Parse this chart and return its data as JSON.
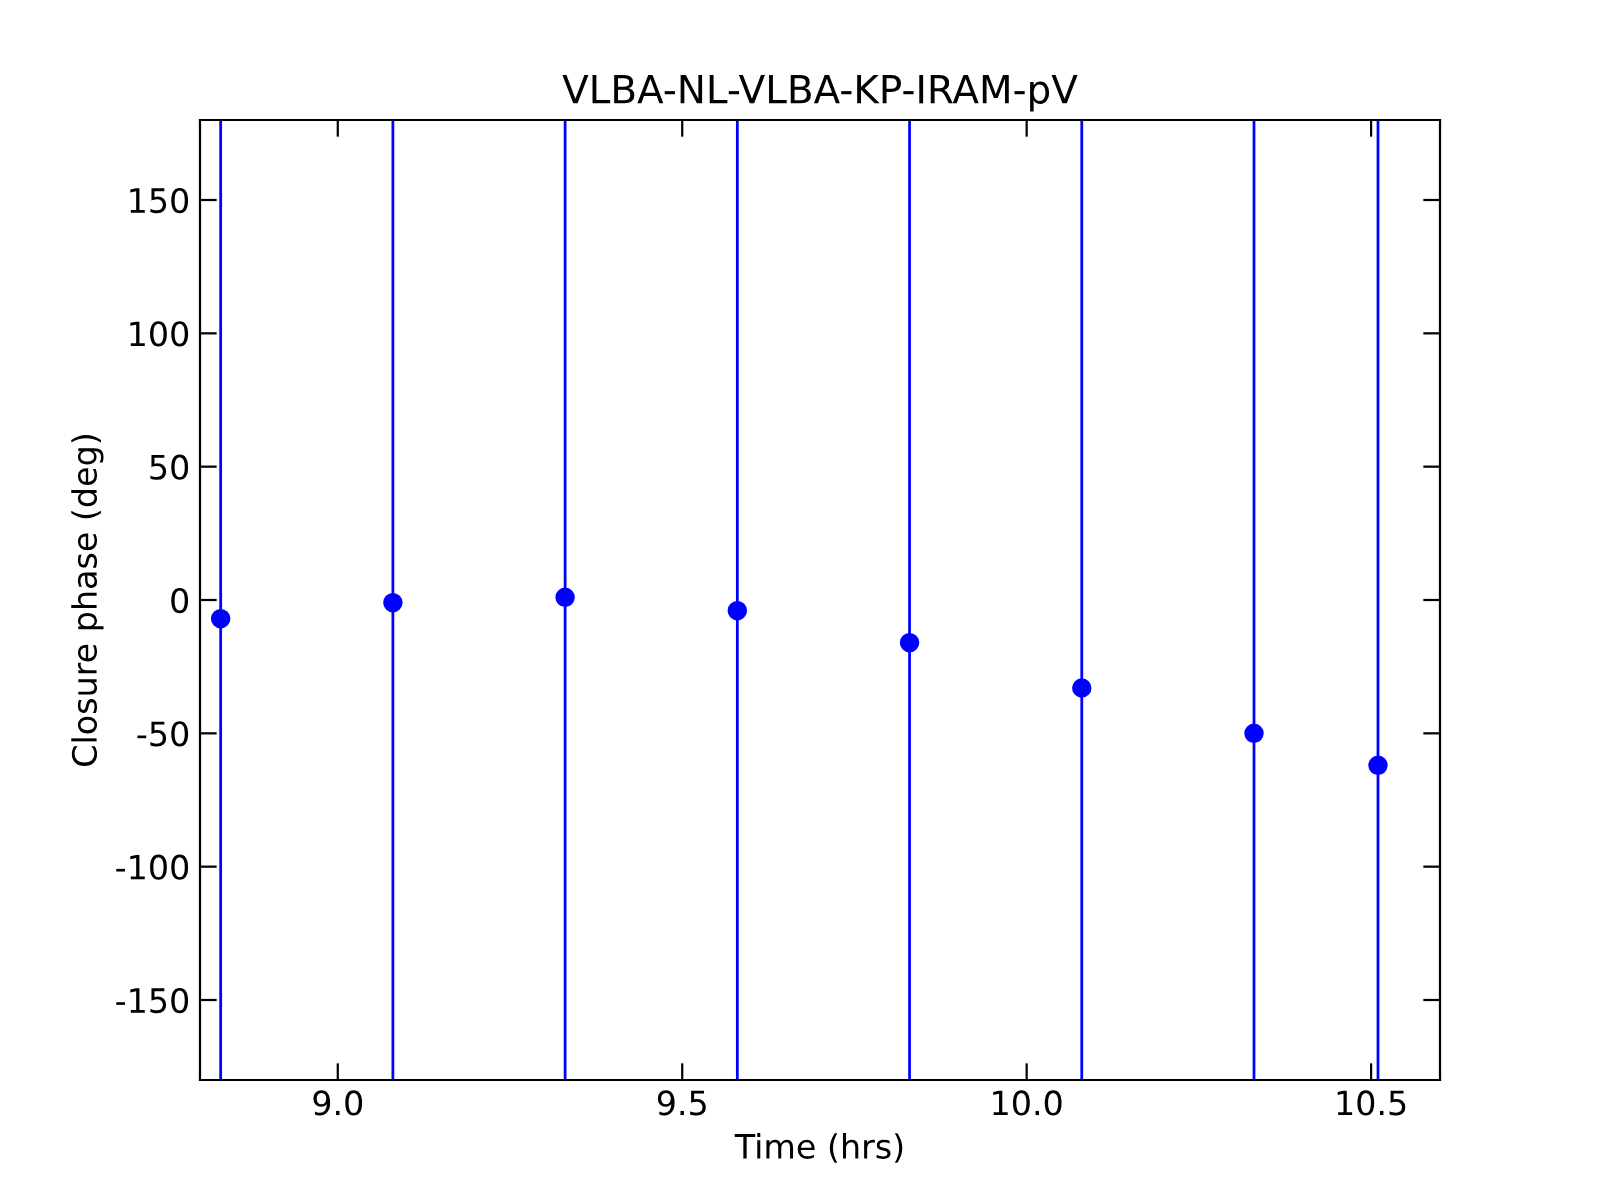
{
  "chart_data": {
    "type": "scatter",
    "title": "VLBA-NL-VLBA-KP-IRAM-pV",
    "xlabel": "Time (hrs)",
    "ylabel": "Closure phase (deg)",
    "x": [
      8.83,
      9.08,
      9.33,
      9.58,
      9.83,
      10.08,
      10.33,
      10.51
    ],
    "series": [
      {
        "color": "#0000ff",
        "values": [
          -7,
          -1,
          1,
          -4,
          -16,
          -33,
          -50,
          -62
        ],
        "errors": [
          [
            -180,
            180
          ],
          [
            -180,
            180
          ],
          [
            -180,
            180
          ],
          [
            -180,
            180
          ],
          [
            -180,
            180
          ],
          [
            -180,
            180
          ],
          [
            -180,
            180
          ],
          [
            -180,
            180
          ]
        ]
      }
    ],
    "xlim": [
      8.8,
      10.6
    ],
    "xticks": [
      {
        "value": 9.0,
        "label": "9.0"
      },
      {
        "value": 9.5,
        "label": "9.5"
      },
      {
        "value": 10.0,
        "label": "10.0"
      },
      {
        "value": 10.5,
        "label": "10.5"
      }
    ],
    "ylim": [
      -180,
      180
    ],
    "yticks": [
      -150,
      -100,
      -50,
      0,
      50,
      100,
      150
    ],
    "marker": "circle",
    "grid": false,
    "legend": false
  }
}
